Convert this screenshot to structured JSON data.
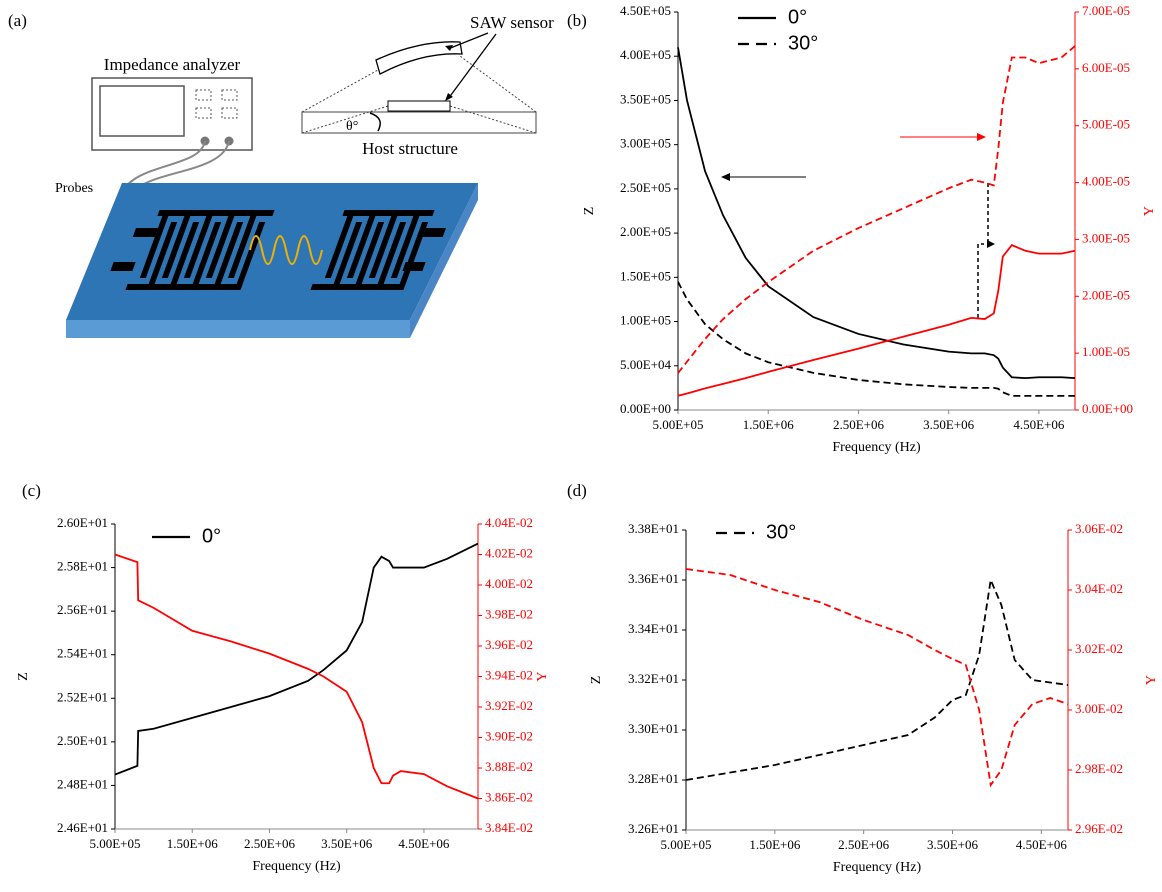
{
  "diagram": {
    "panel": "(a)",
    "analyzer_label": "Impedance analyzer",
    "sensor_label": "SAW sensor",
    "angle_label": "θ°",
    "host_label": "Host structure",
    "probes_label": "Probes"
  },
  "chart_data": [
    {
      "type": "line",
      "panel": "(b)",
      "xlabel": "Frequency (Hz)",
      "ylabel": "Z",
      "y2label": "Y",
      "y2_color": "#ff0000",
      "legend_position": "upper left",
      "legend": [
        {
          "name": "0°",
          "dash": "solid"
        },
        {
          "name": "30°",
          "dash": "dashed"
        }
      ],
      "xlim": [
        500000,
        4900000
      ],
      "xticks": [
        {
          "value": 500000,
          "label": "5.00E+05"
        },
        {
          "value": 1500000,
          "label": "1.50E+06"
        },
        {
          "value": 2500000,
          "label": "2.50E+06"
        },
        {
          "value": 3500000,
          "label": "3.50E+06"
        },
        {
          "value": 4500000,
          "label": "4.50E+06"
        }
      ],
      "ylim": [
        0,
        450000
      ],
      "yticks": [
        {
          "value": 0,
          "label": "0.00E+00"
        },
        {
          "value": 50000,
          "label": "5.00E+04"
        },
        {
          "value": 100000,
          "label": "1.00E+05"
        },
        {
          "value": 150000,
          "label": "1.50E+05"
        },
        {
          "value": 200000,
          "label": "2.00E+05"
        },
        {
          "value": 250000,
          "label": "2.50E+05"
        },
        {
          "value": 300000,
          "label": "3.00E+05"
        },
        {
          "value": 350000,
          "label": "3.50E+05"
        },
        {
          "value": 400000,
          "label": "4.00E+05"
        },
        {
          "value": 450000,
          "label": "4.50E+05"
        }
      ],
      "y2lim": [
        0,
        7e-05
      ],
      "y2ticks": [
        {
          "value": 0,
          "label": "0.00E+00"
        },
        {
          "value": 1e-05,
          "label": "1.00E-05"
        },
        {
          "value": 2e-05,
          "label": "2.00E-05"
        },
        {
          "value": 3e-05,
          "label": "3.00E-05"
        },
        {
          "value": 4e-05,
          "label": "4.00E-05"
        },
        {
          "value": 5e-05,
          "label": "5.00E-05"
        },
        {
          "value": 6e-05,
          "label": "6.00E-05"
        },
        {
          "value": 7e-05,
          "label": "7.00E-05"
        }
      ],
      "x": [
        500000,
        600000,
        800000,
        1000000,
        1250000,
        1500000,
        2000000,
        2500000,
        3000000,
        3500000,
        3750000,
        3900000,
        4000000,
        4050000,
        4100000,
        4200000,
        4350000,
        4500000,
        4750000,
        4900000
      ],
      "series": [
        {
          "color": "#000000",
          "dash": "solid",
          "axis": "y",
          "values": [
            410000,
            350000,
            270000,
            220000,
            172000,
            140000,
            105000,
            86000,
            74000,
            66000,
            64000,
            64000,
            62000,
            58000,
            48000,
            37000,
            36000,
            37000,
            37000,
            36000
          ]
        },
        {
          "color": "#000000",
          "dash": "dashed",
          "axis": "y",
          "values": [
            145000,
            125000,
            97000,
            80000,
            64000,
            54000,
            42000,
            34000,
            29000,
            26000,
            25000,
            25000,
            25000,
            24000,
            20000,
            16000,
            16000,
            16000,
            16000,
            16000
          ]
        },
        {
          "color": "#ff0000",
          "dash": "solid",
          "axis": "y2",
          "values": [
            2.5e-06,
            2.9e-06,
            3.8e-06,
            4.6e-06,
            5.6e-06,
            6.7e-06,
            8.8e-06,
            1.08e-05,
            1.29e-05,
            1.5e-05,
            1.62e-05,
            1.6e-05,
            1.7e-05,
            2.1e-05,
            2.7e-05,
            2.9e-05,
            2.8e-05,
            2.75e-05,
            2.75e-05,
            2.8e-05
          ]
        },
        {
          "color": "#ff0000",
          "dash": "dashed",
          "axis": "y2",
          "values": [
            6.5e-06,
            8.5e-06,
            1.25e-05,
            1.6e-05,
            1.95e-05,
            2.25e-05,
            2.8e-05,
            3.2e-05,
            3.55e-05,
            3.9e-05,
            4.05e-05,
            4e-05,
            3.95e-05,
            4.6e-05,
            5.4e-05,
            6.2e-05,
            6.2e-05,
            6.1e-05,
            6.2e-05,
            6.4e-05
          ]
        }
      ]
    },
    {
      "type": "line",
      "panel": "(c)",
      "xlabel": "Frequency (Hz)",
      "ylabel": "Z",
      "y2label": "Y",
      "y2_color": "#ff0000",
      "legend_position": "upper left",
      "legend": [
        {
          "name": "0°",
          "dash": "solid"
        }
      ],
      "xlim": [
        500000,
        5200000
      ],
      "xticks": [
        {
          "value": 500000,
          "label": "5.00E+05"
        },
        {
          "value": 1500000,
          "label": "1.50E+06"
        },
        {
          "value": 2500000,
          "label": "2.50E+06"
        },
        {
          "value": 3500000,
          "label": "3.50E+06"
        },
        {
          "value": 4500000,
          "label": "4.50E+06"
        }
      ],
      "ylim": [
        24.6,
        26.0
      ],
      "yticks": [
        {
          "value": 24.6,
          "label": "2.46E+01"
        },
        {
          "value": 24.8,
          "label": "2.48E+01"
        },
        {
          "value": 25.0,
          "label": "2.50E+01"
        },
        {
          "value": 25.2,
          "label": "2.52E+01"
        },
        {
          "value": 25.4,
          "label": "2.54E+01"
        },
        {
          "value": 25.6,
          "label": "2.56E+01"
        },
        {
          "value": 25.8,
          "label": "2.58E+01"
        },
        {
          "value": 26.0,
          "label": "2.60E+01"
        }
      ],
      "y2lim": [
        0.0384,
        0.0404
      ],
      "y2ticks": [
        {
          "value": 0.0384,
          "label": "3.84E-02"
        },
        {
          "value": 0.0386,
          "label": "3.86E-02"
        },
        {
          "value": 0.0388,
          "label": "3.88E-02"
        },
        {
          "value": 0.039,
          "label": "3.90E-02"
        },
        {
          "value": 0.0392,
          "label": "3.92E-02"
        },
        {
          "value": 0.0394,
          "label": "3.94E-02"
        },
        {
          "value": 0.0396,
          "label": "3.96E-02"
        },
        {
          "value": 0.0398,
          "label": "3.98E-02"
        },
        {
          "value": 0.04,
          "label": "4.00E-02"
        },
        {
          "value": 0.0402,
          "label": "4.02E-02"
        },
        {
          "value": 0.0404,
          "label": "4.04E-02"
        }
      ],
      "x": [
        500000,
        790000,
        800000,
        1000000,
        1500000,
        2000000,
        2500000,
        3000000,
        3200000,
        3500000,
        3700000,
        3850000,
        3950000,
        4050000,
        4100000,
        4200000,
        4500000,
        4800000,
        5200000
      ],
      "series": [
        {
          "color": "#000000",
          "dash": "solid",
          "axis": "y",
          "values": [
            24.85,
            24.89,
            25.05,
            25.06,
            25.11,
            25.16,
            25.21,
            25.28,
            25.33,
            25.42,
            25.55,
            25.8,
            25.85,
            25.83,
            25.8,
            25.8,
            25.8,
            25.84,
            25.91
          ]
        },
        {
          "color": "#ff0000",
          "dash": "solid",
          "axis": "y2",
          "values": [
            0.0402,
            0.04015,
            0.0399,
            0.03985,
            0.0397,
            0.03963,
            0.03955,
            0.03945,
            0.0394,
            0.0393,
            0.0391,
            0.0388,
            0.0387,
            0.0387,
            0.03875,
            0.03878,
            0.03876,
            0.03868,
            0.0386
          ]
        }
      ]
    },
    {
      "type": "line",
      "panel": "(d)",
      "xlabel": "Frequency (Hz)",
      "ylabel": "Z",
      "y2label": "Y",
      "y2_color": "#ff0000",
      "legend_position": "upper left",
      "legend": [
        {
          "name": "30°",
          "dash": "dashed"
        }
      ],
      "xlim": [
        500000,
        4800000
      ],
      "xticks": [
        {
          "value": 500000,
          "label": "5.00E+05"
        },
        {
          "value": 1500000,
          "label": "1.50E+06"
        },
        {
          "value": 2500000,
          "label": "2.50E+06"
        },
        {
          "value": 3500000,
          "label": "3.50E+06"
        },
        {
          "value": 4500000,
          "label": "4.50E+06"
        }
      ],
      "ylim": [
        32.6,
        33.8
      ],
      "yticks": [
        {
          "value": 32.6,
          "label": "3.26E+01"
        },
        {
          "value": 32.8,
          "label": "3.28E+01"
        },
        {
          "value": 33.0,
          "label": "3.30E+01"
        },
        {
          "value": 33.2,
          "label": "3.32E+01"
        },
        {
          "value": 33.4,
          "label": "3.34E+01"
        },
        {
          "value": 33.6,
          "label": "3.36E+01"
        },
        {
          "value": 33.8,
          "label": "3.38E+01"
        }
      ],
      "y2lim": [
        0.0296,
        0.0306
      ],
      "y2ticks": [
        {
          "value": 0.0296,
          "label": "2.96E-02"
        },
        {
          "value": 0.0298,
          "label": "2.98E-02"
        },
        {
          "value": 0.03,
          "label": "3.00E-02"
        },
        {
          "value": 0.0302,
          "label": "3.02E-02"
        },
        {
          "value": 0.0304,
          "label": "3.04E-02"
        },
        {
          "value": 0.0306,
          "label": "3.06E-02"
        }
      ],
      "x": [
        500000,
        1000000,
        1500000,
        2000000,
        2500000,
        3000000,
        3300000,
        3500000,
        3650000,
        3800000,
        3930000,
        4050000,
        4200000,
        4400000,
        4600000,
        4800000
      ],
      "series": [
        {
          "color": "#000000",
          "dash": "dashed",
          "axis": "y",
          "values": [
            32.8,
            32.83,
            32.86,
            32.9,
            32.94,
            32.98,
            33.05,
            33.12,
            33.14,
            33.3,
            33.6,
            33.5,
            33.28,
            33.2,
            33.19,
            33.18
          ]
        },
        {
          "color": "#ff0000",
          "dash": "dashed",
          "axis": "y2",
          "values": [
            0.03047,
            0.03045,
            0.0304,
            0.03036,
            0.0303,
            0.03025,
            0.0302,
            0.03017,
            0.03015,
            0.03,
            0.02975,
            0.0298,
            0.02995,
            0.03002,
            0.03004,
            0.03002
          ]
        }
      ]
    }
  ]
}
